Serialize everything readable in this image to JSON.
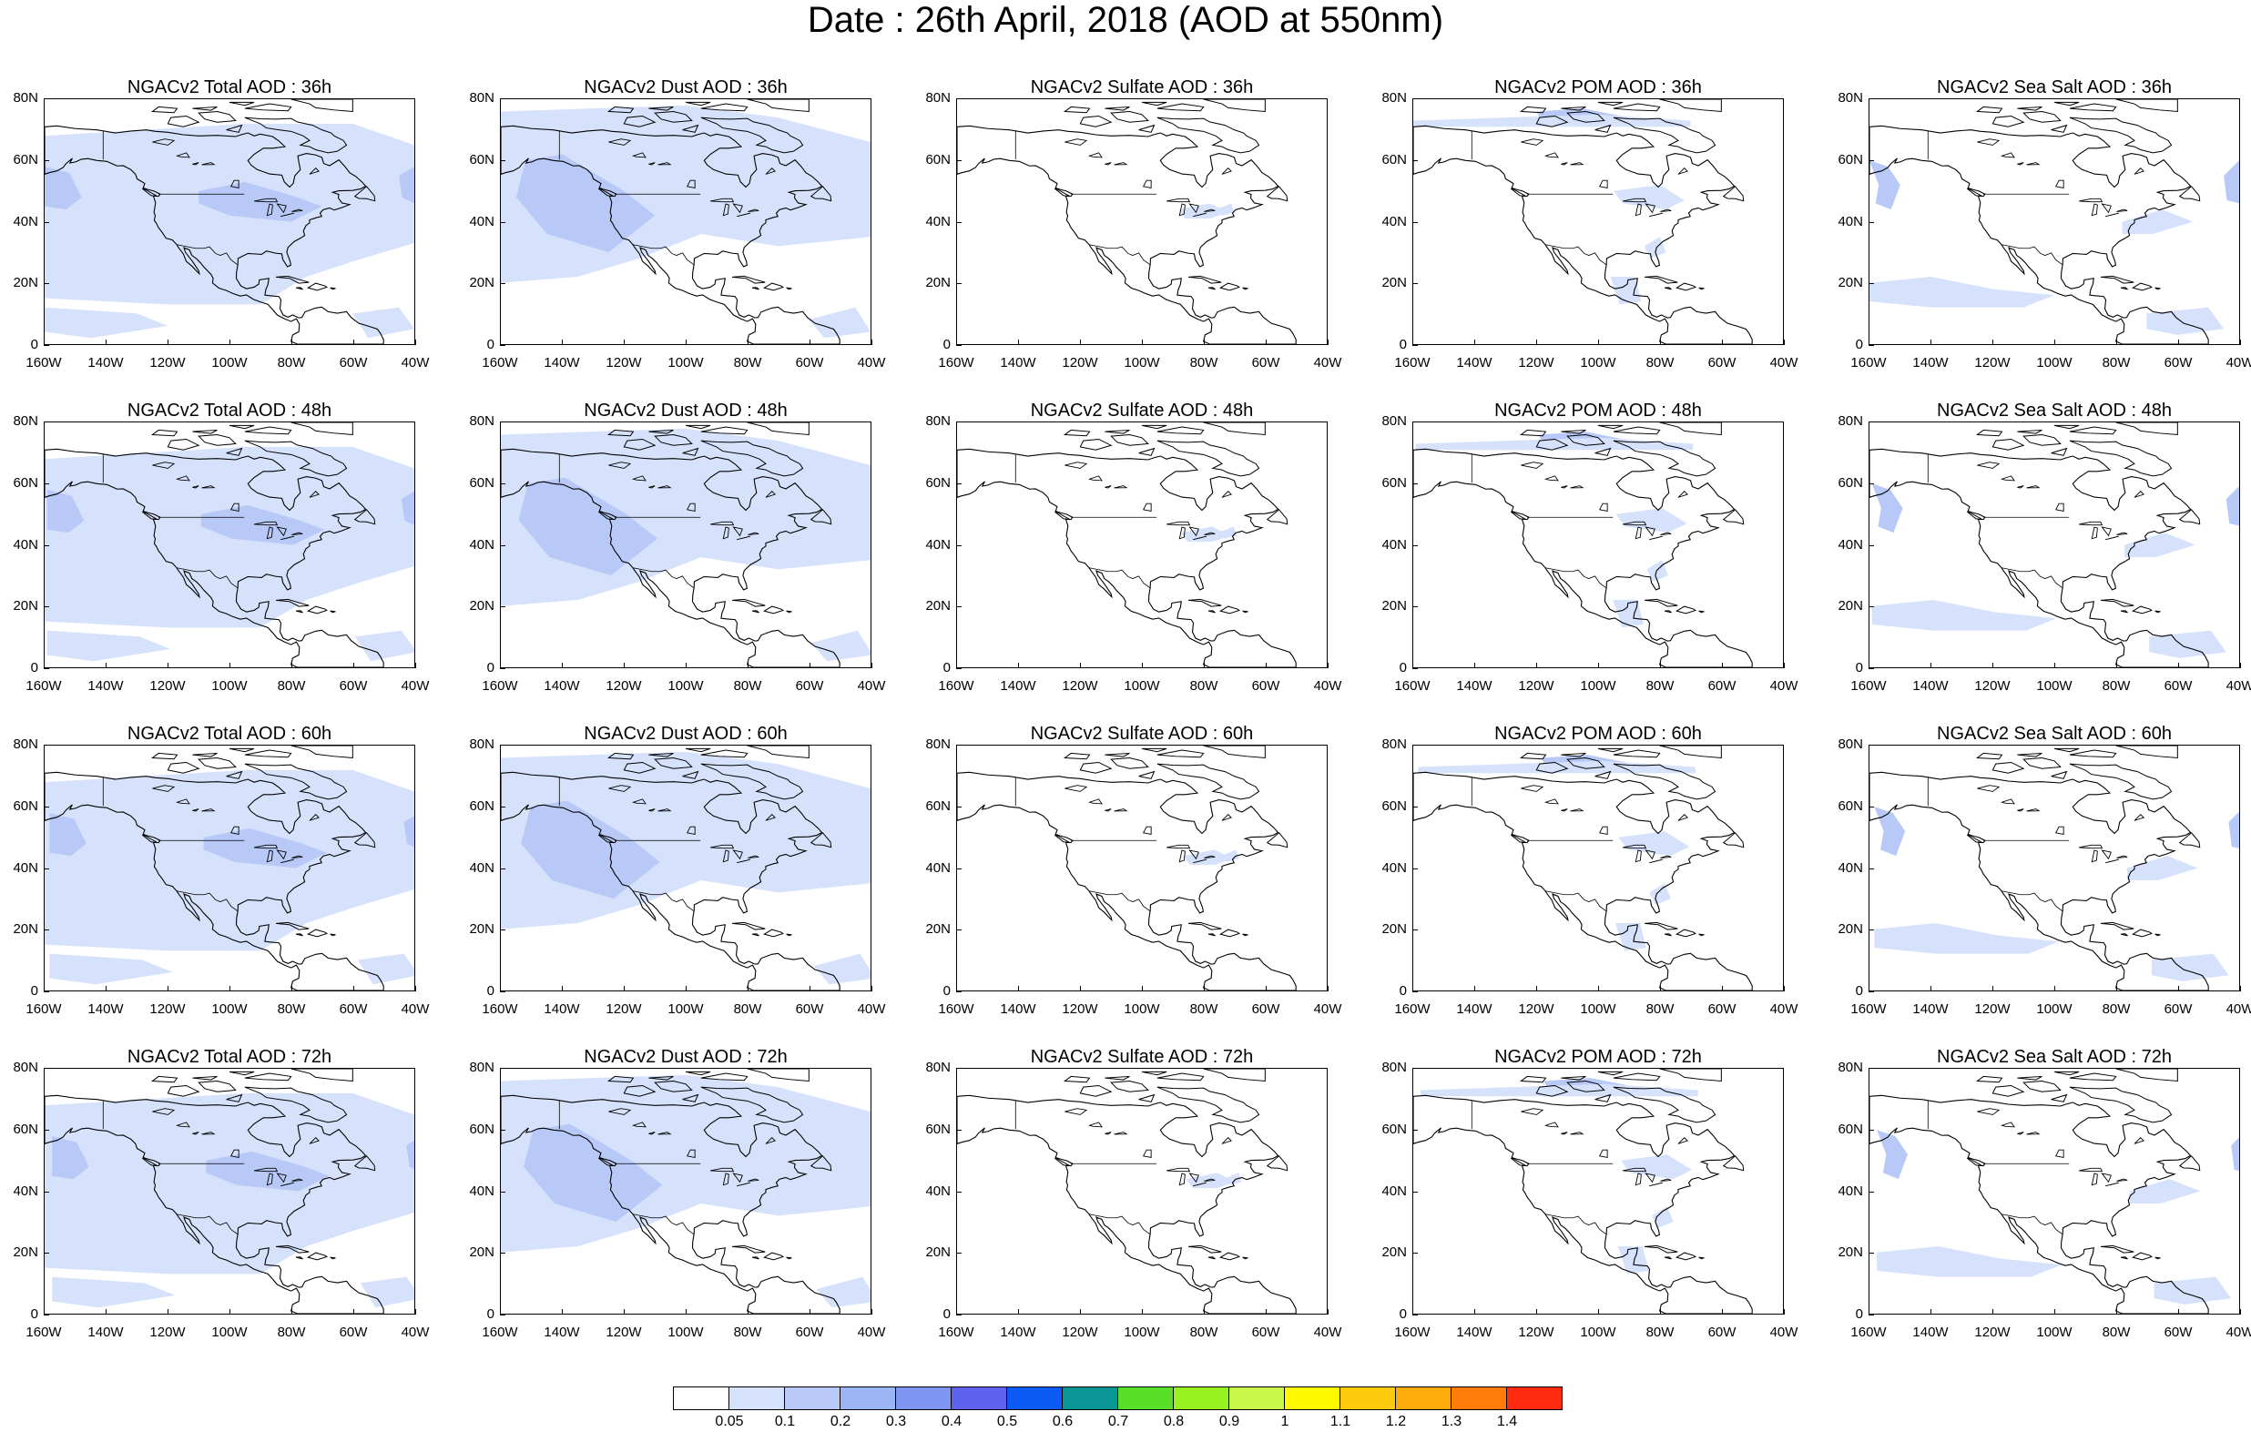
{
  "title": "Date : 26th April, 2018 (AOD at 550nm)",
  "latitude_labels": [
    "80N",
    "60N",
    "40N",
    "20N",
    "0"
  ],
  "longitude_labels": [
    "160W",
    "140W",
    "120W",
    "100W",
    "80W",
    "60W",
    "40W"
  ],
  "panels": [
    {
      "title": "NGACv2 Total AOD : 36h",
      "variable": "total",
      "forecast_hour": 36
    },
    {
      "title": "NGACv2 Dust AOD : 36h",
      "variable": "dust",
      "forecast_hour": 36
    },
    {
      "title": "NGACv2 Sulfate AOD : 36h",
      "variable": "sulfate",
      "forecast_hour": 36
    },
    {
      "title": "NGACv2 POM AOD : 36h",
      "variable": "pom",
      "forecast_hour": 36
    },
    {
      "title": "NGACv2 Sea Salt AOD : 36h",
      "variable": "seasalt",
      "forecast_hour": 36
    },
    {
      "title": "NGACv2 Total AOD : 48h",
      "variable": "total",
      "forecast_hour": 48
    },
    {
      "title": "NGACv2 Dust AOD : 48h",
      "variable": "dust",
      "forecast_hour": 48
    },
    {
      "title": "NGACv2 Sulfate AOD : 48h",
      "variable": "sulfate",
      "forecast_hour": 48
    },
    {
      "title": "NGACv2 POM AOD : 48h",
      "variable": "pom",
      "forecast_hour": 48
    },
    {
      "title": "NGACv2 Sea Salt AOD : 48h",
      "variable": "seasalt",
      "forecast_hour": 48
    },
    {
      "title": "NGACv2 Total AOD : 60h",
      "variable": "total",
      "forecast_hour": 60
    },
    {
      "title": "NGACv2 Dust AOD : 60h",
      "variable": "dust",
      "forecast_hour": 60
    },
    {
      "title": "NGACv2 Sulfate AOD : 60h",
      "variable": "sulfate",
      "forecast_hour": 60
    },
    {
      "title": "NGACv2 POM AOD : 60h",
      "variable": "pom",
      "forecast_hour": 60
    },
    {
      "title": "NGACv2 Sea Salt AOD : 60h",
      "variable": "seasalt",
      "forecast_hour": 60
    },
    {
      "title": "NGACv2 Total AOD : 72h",
      "variable": "total",
      "forecast_hour": 72
    },
    {
      "title": "NGACv2 Dust AOD : 72h",
      "variable": "dust",
      "forecast_hour": 72
    },
    {
      "title": "NGACv2 Sulfate AOD : 72h",
      "variable": "sulfate",
      "forecast_hour": 72
    },
    {
      "title": "NGACv2 POM AOD : 72h",
      "variable": "pom",
      "forecast_hour": 72
    },
    {
      "title": "NGACv2 Sea Salt  AOD : 72h",
      "variable": "seasalt",
      "forecast_hour": 72
    }
  ],
  "colorbar": {
    "labels": [
      "0.05",
      "0.1",
      "0.2",
      "0.3",
      "0.4",
      "0.5",
      "0.6",
      "0.7",
      "0.8",
      "0.9",
      "1",
      "1.1",
      "1.2",
      "1.3",
      "1.4"
    ],
    "colors": [
      "#ffffff",
      "#d6e1fb",
      "#b8c9f7",
      "#9db4f5",
      "#7f95f2",
      "#5f62ee",
      "#0b5af3",
      "#0a9696",
      "#5adf28",
      "#98f21f",
      "#c9f84a",
      "#fff800",
      "#ffc90c",
      "#ffab0c",
      "#ff7b0a",
      "#ff2a10"
    ]
  }
}
